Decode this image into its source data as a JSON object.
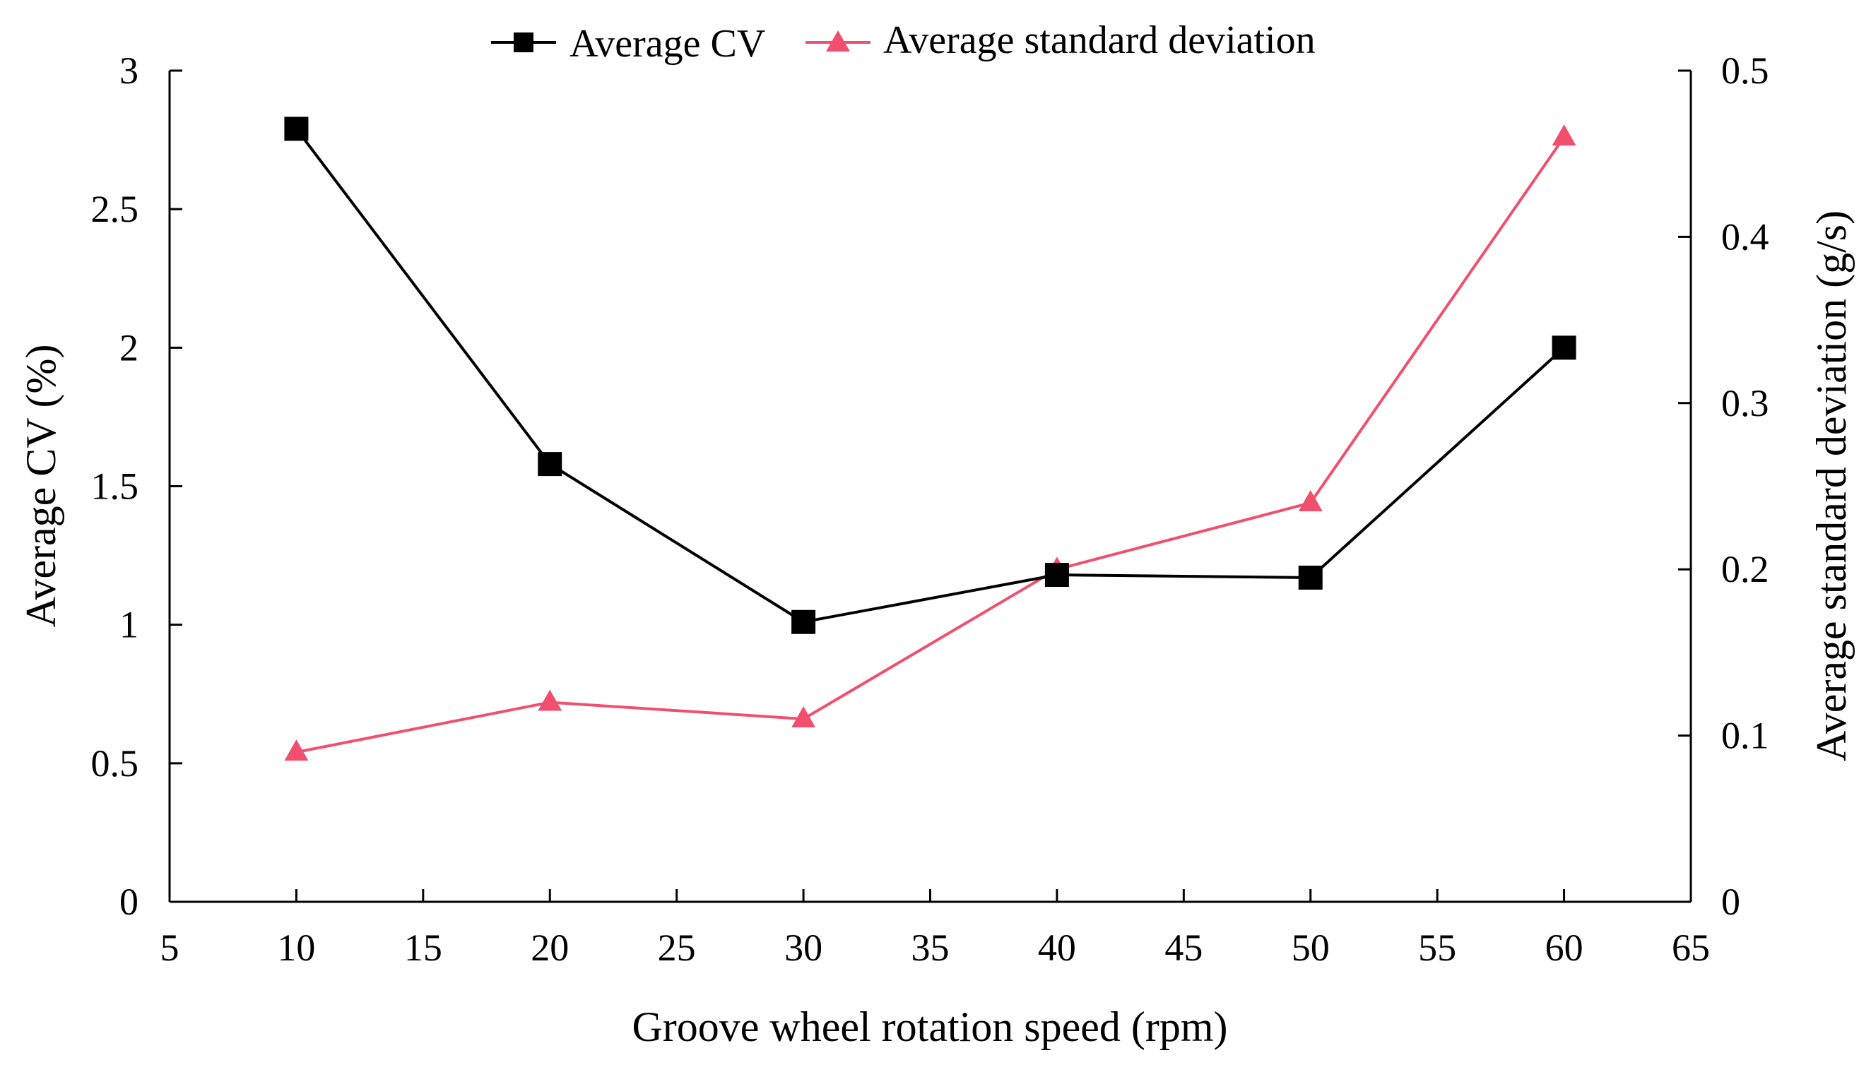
{
  "chart_data": {
    "type": "line",
    "xlabel": "Groove wheel rotation speed (rpm)",
    "ylabel": "Average CV (%)",
    "y2label": "Average standard deviation (g/s)",
    "xlim": [
      5,
      65
    ],
    "xticks": [
      5,
      10,
      15,
      20,
      25,
      30,
      35,
      40,
      45,
      50,
      55,
      60,
      65
    ],
    "ylim": [
      0,
      3
    ],
    "yticks": [
      0,
      0.5,
      1,
      1.5,
      2,
      2.5,
      3
    ],
    "y2lim": [
      0,
      0.5
    ],
    "y2ticks": [
      0,
      0.1,
      0.2,
      0.3,
      0.4,
      0.5
    ],
    "legend_position": "top-center",
    "grid": false,
    "series": [
      {
        "name": "Average CV",
        "axis": "left",
        "marker": "square",
        "color": "#000000",
        "x": [
          10,
          20,
          30,
          40,
          50,
          60
        ],
        "values": [
          2.79,
          1.58,
          1.01,
          1.18,
          1.17,
          2.0
        ]
      },
      {
        "name": "Average standard deviation",
        "axis": "right",
        "marker": "triangle",
        "color": "#f0506e",
        "x": [
          10,
          20,
          30,
          40,
          50,
          60
        ],
        "values": [
          0.09,
          0.12,
          0.11,
          0.2,
          0.24,
          0.46
        ]
      }
    ]
  }
}
